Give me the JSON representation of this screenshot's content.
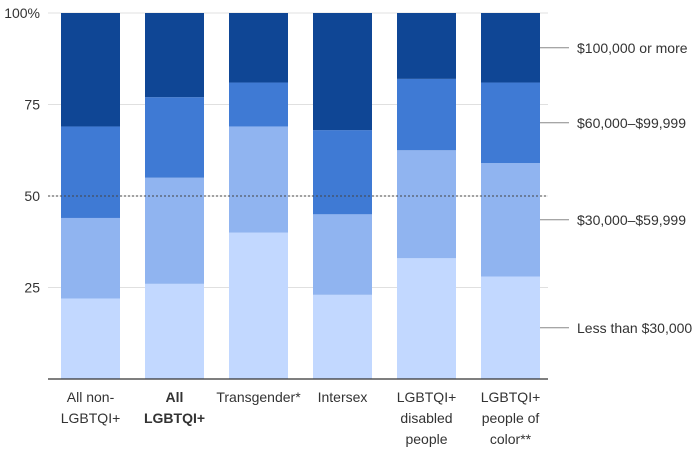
{
  "chart_data": {
    "type": "bar",
    "stacked": true,
    "categories": [
      [
        "All non-",
        "LGBTQI+"
      ],
      [
        "All",
        "LGBTQI+"
      ],
      [
        "Transgender*"
      ],
      [
        "Intersex"
      ],
      [
        "LGBTQI+",
        "disabled",
        "people"
      ],
      [
        "LGBTQI+",
        "people of",
        "color**"
      ]
    ],
    "bold_categories": [
      1
    ],
    "series": [
      {
        "name": "Less than $30,000",
        "color": "#c2d8ff",
        "values": [
          22,
          26,
          40,
          23,
          33,
          28
        ]
      },
      {
        "name": "$30,000–$59,999",
        "color": "#90b4f0",
        "values": [
          22,
          29,
          29,
          22,
          29.5,
          31
        ]
      },
      {
        "name": "$60,000–$99,999",
        "color": "#3f7ad4",
        "values": [
          25,
          22,
          12,
          23,
          19.5,
          22
        ]
      },
      {
        "name": "$100,000 or more",
        "color": "#0f4695",
        "values": [
          31,
          23,
          19,
          32,
          18,
          19
        ]
      }
    ],
    "yticks": [
      {
        "value": 100,
        "label": "100%"
      },
      {
        "value": 75,
        "label": "75"
      },
      {
        "value": 50,
        "label": "50"
      },
      {
        "value": 25,
        "label": "25"
      }
    ],
    "ylim": [
      0,
      100
    ],
    "reference_line": 50,
    "legend_placement": "right"
  }
}
